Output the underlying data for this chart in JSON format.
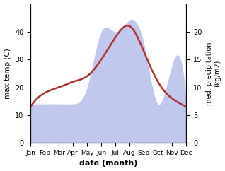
{
  "months": [
    "Jan",
    "Feb",
    "Mar",
    "Apr",
    "May",
    "Jun",
    "Jul",
    "Aug",
    "Sep",
    "Oct",
    "Nov",
    "Dec"
  ],
  "month_x": [
    1,
    2,
    3,
    4,
    5,
    6,
    7,
    8,
    9,
    10,
    11,
    12
  ],
  "temp_max": [
    13,
    18,
    20,
    22,
    24,
    30,
    38,
    42,
    33,
    22,
    16,
    13
  ],
  "precip": [
    7,
    7,
    7,
    7,
    10,
    20,
    20,
    22,
    18,
    7,
    14,
    8
  ],
  "temp_color": "#b03030",
  "precip_color": "#c0c8f0",
  "temp_ylim": [
    0,
    50
  ],
  "precip_ylim": [
    0,
    25
  ],
  "temp_yticks": [
    0,
    10,
    20,
    30,
    40
  ],
  "precip_yticks": [
    0,
    5,
    10,
    15,
    20
  ],
  "ylabel_left": "max temp (C)",
  "ylabel_right": "med. precipitation\n(kg/m2)",
  "xlabel": "date (month)",
  "bg_color": "#ffffff",
  "line_width": 1.8
}
